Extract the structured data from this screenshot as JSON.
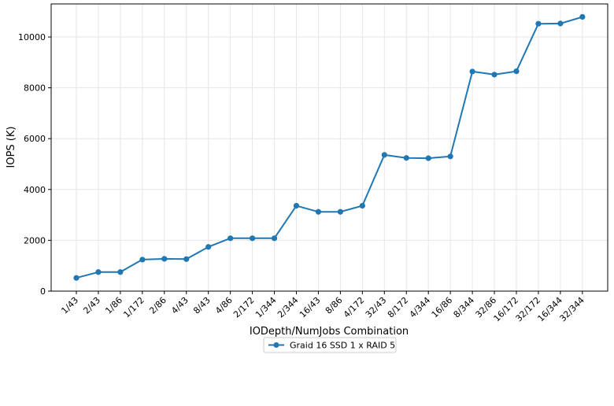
{
  "chart_data": {
    "type": "line",
    "title": "",
    "xlabel": "IODepth/NumJobs Combination",
    "ylabel": "IOPS (K)",
    "categories": [
      "1/43",
      "2/43",
      "1/86",
      "1/172",
      "2/86",
      "4/43",
      "8/43",
      "4/86",
      "2/172",
      "1/344",
      "2/344",
      "16/43",
      "8/86",
      "4/172",
      "32/43",
      "8/172",
      "4/344",
      "16/86",
      "8/344",
      "32/86",
      "16/172",
      "32/172",
      "16/344",
      "32/344"
    ],
    "series": [
      {
        "name": "Graid 16 SSD 1 x RAID 5",
        "color": "#1f77b4",
        "values": [
          520,
          750,
          750,
          1240,
          1270,
          1260,
          1740,
          2080,
          2080,
          2080,
          3360,
          3120,
          3120,
          3360,
          5360,
          5240,
          5230,
          5300,
          8640,
          8520,
          8650,
          10520,
          10530,
          10790
        ]
      }
    ],
    "ylim": [
      0,
      11300
    ],
    "yticks": [
      0,
      2000,
      4000,
      6000,
      8000,
      10000
    ],
    "grid": true,
    "legend_position": "bottom-center"
  }
}
